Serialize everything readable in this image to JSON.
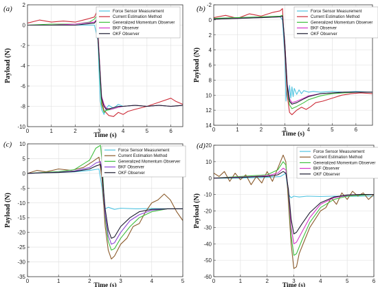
{
  "chart_data": [
    {
      "type": "line",
      "panel_label": "(a)",
      "xlabel": "Time (s)",
      "ylabel": "Payload (N)",
      "xlim": [
        0,
        6.5
      ],
      "ylim": [
        -10,
        2
      ],
      "xticks": [
        0,
        1,
        2,
        3,
        4,
        5,
        6
      ],
      "yticks": [
        2,
        0,
        -2,
        -4,
        -6,
        -8,
        -10
      ],
      "grid": true,
      "legend": "top-right",
      "series": [
        {
          "name": "Force Sensor Measurement",
          "color": "#4fc3e0",
          "x": [
            0,
            1,
            2,
            2.8,
            2.95,
            3.0,
            3.05,
            3.1,
            3.2,
            3.3,
            3.4,
            3.6,
            3.8,
            4.0,
            4.5,
            5.0,
            5.5,
            6.0,
            6.5
          ],
          "y": [
            0,
            0,
            0,
            0,
            -1.5,
            -5,
            -7.5,
            -8.3,
            -8.8,
            -8.2,
            -7.9,
            -8.2,
            -7.8,
            -8.0,
            -7.9,
            -8.0,
            -7.9,
            -8.0,
            -7.9
          ]
        },
        {
          "name": "Current Estimation Method",
          "color": "#cc2a36",
          "x": [
            0,
            0.5,
            1,
            1.5,
            2,
            2.5,
            2.8,
            2.9,
            3.0,
            3.1,
            3.2,
            3.4,
            3.6,
            3.8,
            4.0,
            4.2,
            4.5,
            5.0,
            5.5,
            6.0,
            6.2,
            6.5
          ],
          "y": [
            0.2,
            0.5,
            0.3,
            0.4,
            0.3,
            0.6,
            0.8,
            1.3,
            -3,
            -7.5,
            -8.4,
            -8.9,
            -9.0,
            -8.6,
            -8.8,
            -8.5,
            -8.3,
            -8.0,
            -7.6,
            -7.2,
            -7.5,
            -7.8
          ]
        },
        {
          "name": "Generalized Momentum Observer",
          "color": "#3fbf3f",
          "x": [
            0,
            1,
            2,
            2.6,
            2.8,
            2.9,
            3.0,
            3.1,
            3.2,
            3.3,
            3.5,
            3.8,
            4.0,
            4.5,
            5.0,
            5.5,
            6.0,
            6.5
          ],
          "y": [
            0,
            0.1,
            0.1,
            0.3,
            0.6,
            0.9,
            -3.5,
            -7.8,
            -8.6,
            -8.4,
            -8.3,
            -8.1,
            -8.0,
            -7.9,
            -8.0,
            -7.9,
            -8.0,
            -7.9
          ]
        },
        {
          "name": "BKF Observer",
          "color": "#d335c8",
          "x": [
            0,
            1,
            2,
            2.8,
            2.9,
            3.0,
            3.1,
            3.2,
            3.3,
            3.5,
            3.8,
            4.0,
            4.5,
            5.0,
            5.5,
            6.0,
            6.5
          ],
          "y": [
            0,
            0,
            0.1,
            0.3,
            0.6,
            -3,
            -7,
            -7.8,
            -8.2,
            -8.3,
            -8.1,
            -8.0,
            -7.9,
            -8.0,
            -7.9,
            -8.0,
            -7.9
          ]
        },
        {
          "name": "OKF Observer",
          "color": "#1a1a2e",
          "x": [
            0,
            1,
            2,
            2.8,
            2.9,
            3.0,
            3.1,
            3.2,
            3.3,
            3.5,
            3.8,
            4.0,
            4.5,
            5.0,
            5.5,
            6.0,
            6.5
          ],
          "y": [
            0,
            0,
            0,
            0.2,
            0.5,
            -3.2,
            -7.2,
            -8.0,
            -8.3,
            -8.2,
            -8.0,
            -8.0,
            -7.9,
            -8.0,
            -7.9,
            -8.0,
            -7.9
          ]
        }
      ]
    },
    {
      "type": "line",
      "panel_label": "(b)",
      "xlabel": "Time (s)",
      "ylabel": "Payload (N)",
      "xlim": [
        0,
        6.7
      ],
      "ylim": [
        -2,
        14
      ],
      "y_inverted": true,
      "xticks": [
        0,
        1,
        2,
        3,
        4,
        5,
        6
      ],
      "yticks": [
        -2,
        0,
        2,
        4,
        6,
        8,
        10,
        12,
        14
      ],
      "grid": true,
      "legend": "top-right",
      "series": [
        {
          "name": "Force Sensor Measurement",
          "color": "#4fc3e0",
          "x": [
            0,
            1,
            2,
            2.8,
            2.9,
            3.0,
            3.05,
            3.1,
            3.15,
            3.2,
            3.25,
            3.3,
            3.35,
            3.4,
            3.5,
            3.6,
            3.7,
            3.8,
            4.0,
            4.2,
            4.5,
            5.0,
            5.5,
            6.0,
            6.7
          ],
          "y": [
            -0.2,
            -0.3,
            -0.4,
            -0.4,
            0,
            5,
            10.8,
            8.5,
            10.6,
            8.7,
            10.4,
            8.9,
            10.2,
            9.1,
            9.9,
            9.3,
            9.8,
            9.4,
            9.6,
            9.5,
            9.6,
            9.5,
            9.6,
            9.5,
            9.6
          ]
        },
        {
          "name": "Current Estimation Method",
          "color": "#cc2a36",
          "x": [
            0,
            0.5,
            1,
            1.5,
            2,
            2.5,
            2.8,
            2.9,
            3.0,
            3.1,
            3.2,
            3.3,
            3.5,
            3.7,
            3.9,
            4.1,
            4.3,
            4.6,
            5.0,
            5.4,
            5.8,
            6.2,
            6.7
          ],
          "y": [
            -0.3,
            -0.6,
            -0.2,
            -0.8,
            -0.5,
            -1.0,
            -1.2,
            -1.5,
            4,
            10,
            12.3,
            12.6,
            12.0,
            11.6,
            11.9,
            11.5,
            11.0,
            10.8,
            10.4,
            10.0,
            9.8,
            9.7,
            9.8
          ]
        },
        {
          "name": "Generalized Momentum Observer",
          "color": "#3fbf3f",
          "x": [
            0,
            1,
            2,
            2.8,
            2.9,
            3.0,
            3.1,
            3.2,
            3.3,
            3.5,
            3.8,
            4.0,
            4.5,
            5.0,
            5.5,
            6.0,
            6.7
          ],
          "y": [
            -0.2,
            -0.3,
            -0.4,
            -0.5,
            -0.6,
            3,
            9,
            11.3,
            11.8,
            11.5,
            11.0,
            10.6,
            10.1,
            9.8,
            9.7,
            9.6,
            9.6
          ]
        },
        {
          "name": "BKF Observer",
          "color": "#d335c8",
          "x": [
            0,
            1,
            2,
            2.8,
            2.9,
            3.0,
            3.1,
            3.2,
            3.3,
            3.5,
            3.8,
            4.0,
            4.5,
            5.0,
            5.5,
            6.0,
            6.7
          ],
          "y": [
            -0.1,
            -0.2,
            -0.3,
            -0.4,
            -0.5,
            3,
            8.5,
            10.5,
            11.0,
            10.8,
            10.4,
            10.1,
            9.8,
            9.7,
            9.6,
            9.6,
            9.6
          ]
        },
        {
          "name": "OKF Observer",
          "color": "#1a1a2e",
          "x": [
            0,
            1,
            2,
            2.8,
            2.9,
            3.0,
            3.1,
            3.2,
            3.3,
            3.5,
            3.8,
            4.0,
            4.5,
            5.0,
            5.5,
            6.0,
            6.7
          ],
          "y": [
            -0.1,
            -0.2,
            -0.3,
            -0.4,
            -0.5,
            3.2,
            8.8,
            10.8,
            11.2,
            11.0,
            10.5,
            10.2,
            9.8,
            9.7,
            9.6,
            9.6,
            9.6
          ]
        }
      ]
    },
    {
      "type": "line",
      "panel_label": "(c)",
      "xlabel": "Time (s)",
      "ylabel": "Payload (N)",
      "xlim": [
        0,
        5
      ],
      "ylim": [
        -35,
        10
      ],
      "xticks": [
        0,
        1,
        2,
        3,
        4,
        5
      ],
      "yticks": [
        10,
        5,
        0,
        -5,
        -10,
        -15,
        -20,
        -25,
        -30,
        -35
      ],
      "grid": true,
      "legend": "top-right",
      "series": [
        {
          "name": "Force Sensor Measurement",
          "color": "#4fc3e0",
          "x": [
            0,
            0.5,
            1,
            1.5,
            2,
            2.3,
            2.4,
            2.45,
            2.5,
            2.6,
            2.8,
            3.0,
            3.5,
            4.0,
            4.5,
            5.0
          ],
          "y": [
            0,
            0.2,
            0.3,
            0.5,
            1,
            1.5,
            -5,
            -10.5,
            -12,
            -11.5,
            -12.2,
            -11.8,
            -12,
            -11.9,
            -12,
            -12
          ]
        },
        {
          "name": "Current Estimation Method",
          "color": "#8a5a2b",
          "x": [
            0,
            0.3,
            0.6,
            1.0,
            1.4,
            1.8,
            2.1,
            2.3,
            2.4,
            2.5,
            2.6,
            2.7,
            2.8,
            3.0,
            3.2,
            3.4,
            3.6,
            3.8,
            4.0,
            4.2,
            4.4,
            4.6,
            4.8,
            5.0
          ],
          "y": [
            0,
            1,
            0.5,
            1.5,
            1,
            2,
            4,
            5.5,
            -2,
            -18,
            -26,
            -29,
            -28,
            -24,
            -22,
            -18,
            -17,
            -13,
            -10,
            -9,
            -7,
            -9,
            -13,
            -16
          ]
        },
        {
          "name": "Generalized Momentum Observer",
          "color": "#3fbf3f",
          "x": [
            0,
            0.5,
            1,
            1.5,
            2.0,
            2.2,
            2.35,
            2.4,
            2.5,
            2.6,
            2.7,
            2.8,
            3.0,
            3.3,
            3.6,
            4.0,
            4.5,
            5.0
          ],
          "y": [
            0,
            0.3,
            0.6,
            1.2,
            4.5,
            8.5,
            9.5,
            4,
            -15,
            -23,
            -26,
            -25.5,
            -22,
            -18,
            -15,
            -13,
            -12,
            -12
          ]
        },
        {
          "name": "BKF Observer",
          "color": "#8b45d6",
          "x": [
            0,
            0.5,
            1,
            1.5,
            2.0,
            2.2,
            2.35,
            2.4,
            2.5,
            2.6,
            2.7,
            2.8,
            3.0,
            3.3,
            3.6,
            4.0,
            4.5,
            5.0
          ],
          "y": [
            0,
            0.2,
            0.4,
            0.8,
            2,
            3.5,
            4,
            1,
            -14,
            -21,
            -24,
            -23.5,
            -20,
            -16,
            -14,
            -12.5,
            -12,
            -12
          ]
        },
        {
          "name": "OKF Observer",
          "color": "#1a1a2e",
          "x": [
            0,
            0.5,
            1,
            1.5,
            2.0,
            2.2,
            2.35,
            2.4,
            2.5,
            2.6,
            2.7,
            2.8,
            3.0,
            3.3,
            3.6,
            4.0,
            4.5,
            5.0
          ],
          "y": [
            0,
            0.2,
            0.3,
            0.6,
            1.5,
            2.5,
            3,
            0,
            -12,
            -19,
            -22,
            -21.5,
            -18,
            -15,
            -13,
            -12.2,
            -12,
            -12
          ]
        }
      ]
    },
    {
      "type": "line",
      "panel_label": "(d)",
      "xlabel": "Time (s)",
      "ylabel": "Payload (N)",
      "xlim": [
        0,
        6
      ],
      "ylim": [
        -60,
        20
      ],
      "xticks": [
        0,
        1,
        2,
        3,
        4,
        5,
        6
      ],
      "yticks": [
        20,
        10,
        0,
        -10,
        -20,
        -30,
        -40,
        -50,
        -60
      ],
      "grid": true,
      "legend": "top-right",
      "series": [
        {
          "name": "Force Sensor Measurement",
          "color": "#4fc3e0",
          "x": [
            0,
            1,
            2,
            2.5,
            2.7,
            2.75,
            2.8,
            2.9,
            3.0,
            3.2,
            3.5,
            4.0,
            4.5,
            5.0,
            5.5,
            6.0
          ],
          "y": [
            0,
            0,
            0.5,
            1,
            3,
            -4,
            -10,
            -12,
            -11,
            -11.5,
            -11,
            -11.2,
            -11,
            -11.1,
            -11,
            -11
          ]
        },
        {
          "name": "Current Estimation Method",
          "color": "#8a5a2b",
          "x": [
            0,
            0.2,
            0.4,
            0.6,
            0.8,
            1.0,
            1.2,
            1.4,
            1.6,
            1.8,
            2.0,
            2.2,
            2.4,
            2.6,
            2.7,
            2.8,
            2.9,
            3.0,
            3.1,
            3.2,
            3.4,
            3.6,
            3.8,
            4.0,
            4.2,
            4.4,
            4.6,
            4.8,
            5.0,
            5.2,
            5.4,
            5.6,
            5.8,
            6.0
          ],
          "y": [
            3,
            1,
            4,
            -2,
            3,
            -1,
            2,
            -4,
            1,
            -3,
            4,
            -2,
            6,
            14,
            10,
            -15,
            -40,
            -55,
            -54,
            -46,
            -38,
            -30,
            -25,
            -20,
            -18,
            -12,
            -16,
            -9,
            -13,
            -8,
            -11,
            -9,
            -13,
            -10
          ]
        },
        {
          "name": "Generalized Momentum Observer",
          "color": "#3fbf3f",
          "x": [
            0,
            0.5,
            1,
            1.5,
            2.0,
            2.4,
            2.6,
            2.7,
            2.8,
            2.9,
            3.0,
            3.1,
            3.3,
            3.6,
            4.0,
            4.5,
            5.0,
            5.5,
            6.0
          ],
          "y": [
            0,
            0.5,
            1,
            1.5,
            2,
            5,
            10,
            8,
            -10,
            -35,
            -47,
            -46,
            -38,
            -27,
            -18,
            -13,
            -11,
            -10.5,
            -10
          ]
        },
        {
          "name": "BKF Observer",
          "color": "#d335c8",
          "x": [
            0,
            0.5,
            1,
            1.5,
            2.0,
            2.4,
            2.6,
            2.7,
            2.8,
            2.9,
            3.0,
            3.1,
            3.3,
            3.6,
            4.0,
            4.5,
            5.0,
            5.5,
            6.0
          ],
          "y": [
            0,
            0.3,
            0.6,
            1,
            1.5,
            3,
            6,
            5,
            -8,
            -30,
            -40,
            -39,
            -33,
            -24,
            -16,
            -12,
            -10.5,
            -10,
            -10
          ]
        },
        {
          "name": "OKF Observer",
          "color": "#1a1a2e",
          "x": [
            0,
            0.5,
            1,
            1.5,
            2.0,
            2.4,
            2.6,
            2.7,
            2.8,
            2.9,
            3.0,
            3.1,
            3.3,
            3.6,
            4.0,
            4.5,
            5.0,
            5.5,
            6.0
          ],
          "y": [
            0,
            0.2,
            0.4,
            0.8,
            1,
            2,
            4,
            3,
            -7,
            -25,
            -34,
            -33,
            -28,
            -21,
            -15,
            -11.5,
            -10.3,
            -10,
            -10
          ]
        }
      ]
    }
  ]
}
